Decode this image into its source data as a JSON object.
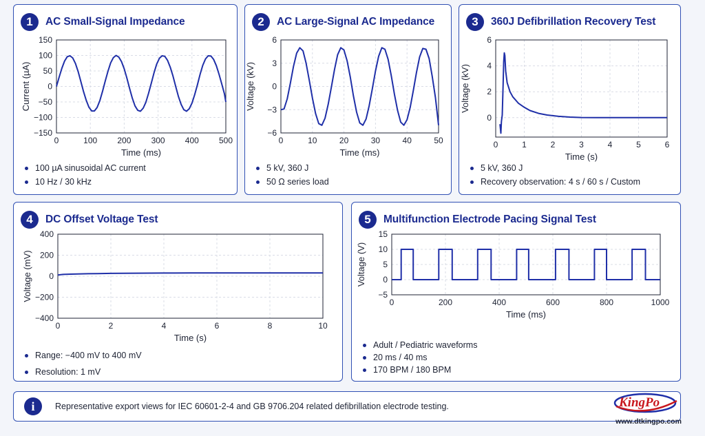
{
  "colors": {
    "accent": "#1b2a8f",
    "line": "#1f2fa8",
    "grid": "#d9dce6",
    "logo_red": "#c8161d"
  },
  "panels": [
    {
      "number": "1",
      "title": "AC Small-Signal Impedance",
      "bullets": [
        "100 µA sinusoidal AC current",
        "10 Hz / 30 kHz"
      ]
    },
    {
      "number": "2",
      "title": "AC Large-Signal AC Impedance",
      "bullets": [
        "5 kV, 360 J",
        "50 Ω series load"
      ]
    },
    {
      "number": "3",
      "title": "360J Defibrillation Recovery Test",
      "bullets": [
        "5 kV, 360 J",
        "Recovery observation: 4 s / 60 s / Custom"
      ]
    },
    {
      "number": "4",
      "title": "DC Offset Voltage Test",
      "bullets": [
        "Range: −400 mV to 400 mV",
        "Resolution: 1 mV"
      ]
    },
    {
      "number": "5",
      "title": "Multifunction Electrode Pacing Signal Test",
      "bullets": [
        "Adult / Pediatric waveforms",
        "20 ms / 40 ms",
        "170 BPM / 180 BPM"
      ]
    }
  ],
  "chart_data": [
    {
      "type": "line",
      "xlabel": "Time (ms)",
      "ylabel": "Current (µA)",
      "xlim": [
        0,
        500
      ],
      "ylim": [
        -150,
        150
      ],
      "xticks": [
        0,
        100,
        200,
        300,
        400,
        500
      ],
      "yticks": [
        -150,
        -100,
        -50,
        0,
        50,
        100,
        150
      ],
      "grid": true,
      "x": [
        0,
        8,
        16,
        24,
        32,
        40,
        48,
        56,
        64,
        72,
        80,
        88,
        96,
        104,
        112,
        120,
        128,
        136,
        144,
        152,
        160,
        168,
        176,
        184,
        192,
        200,
        208,
        216,
        224,
        232,
        240,
        248,
        256,
        264,
        272,
        280,
        288,
        296,
        304,
        312,
        320,
        328,
        336,
        344,
        352,
        360,
        368,
        376,
        384,
        392,
        400,
        408,
        416,
        424,
        432,
        440,
        448,
        456,
        464,
        472,
        480,
        488,
        496,
        500
      ],
      "y": [
        0,
        30,
        59,
        82,
        96,
        99,
        92,
        74,
        48,
        16,
        -17,
        -45,
        -67,
        -79,
        -79,
        -68,
        -46,
        -16,
        17,
        49,
        76,
        93,
        100,
        95,
        80,
        57,
        27,
        -7,
        -38,
        -63,
        -77,
        -80,
        -70,
        -51,
        -22,
        11,
        44,
        72,
        91,
        99,
        97,
        84,
        62,
        34,
        0,
        -32,
        -58,
        -75,
        -80,
        -72,
        -54,
        -27,
        5,
        39,
        68,
        89,
        99,
        98,
        87,
        67,
        39,
        8,
        -24,
        -50
      ]
    },
    {
      "type": "line",
      "xlabel": "Time (ms)",
      "ylabel": "Voltage (kV)",
      "xlim": [
        0,
        50
      ],
      "ylim": [
        -6,
        6
      ],
      "xticks": [
        0,
        10,
        20,
        30,
        40,
        50
      ],
      "yticks": [
        -6,
        -3,
        0,
        3,
        6
      ],
      "grid": true,
      "x": [
        0,
        1,
        2,
        3,
        4,
        5,
        6,
        7,
        8,
        9,
        10,
        11,
        12,
        13,
        14,
        15,
        16,
        17,
        18,
        19,
        20,
        21,
        22,
        23,
        24,
        25,
        26,
        27,
        28,
        29,
        30,
        31,
        32,
        33,
        34,
        35,
        36,
        37,
        38,
        39,
        40,
        41,
        42,
        43,
        44,
        45,
        46,
        47,
        48,
        49,
        50
      ],
      "y": [
        -3,
        -2.9,
        -1.6,
        0.4,
        2.6,
        4.3,
        5,
        4.6,
        3,
        0.8,
        -1.5,
        -3.5,
        -4.8,
        -5,
        -4.1,
        -2.3,
        -0.1,
        2.2,
        4.1,
        5,
        4.7,
        3.3,
        1.2,
        -1.2,
        -3.3,
        -4.7,
        -5,
        -4.2,
        -2.5,
        -0.3,
        2,
        3.9,
        5,
        4.8,
        3.5,
        1.4,
        -1,
        -3.1,
        -4.6,
        -5,
        -4.3,
        -2.7,
        -0.5,
        1.8,
        3.8,
        4.9,
        4.8,
        3.6,
        1.3,
        -1.4,
        -5
      ]
    },
    {
      "type": "line",
      "xlabel": "Time (s)",
      "ylabel": "Voltage (kV)",
      "xlim": [
        0,
        6
      ],
      "ylim": [
        -1.5,
        6
      ],
      "xticks": [
        0,
        1,
        2,
        3,
        4,
        5,
        6
      ],
      "yticks": [
        0,
        2,
        4,
        6
      ],
      "grid": true,
      "x": [
        0.15,
        0.18,
        0.2,
        0.23,
        0.26,
        0.28,
        0.3,
        0.32,
        0.35,
        0.4,
        0.5,
        0.6,
        0.8,
        1,
        1.2,
        1.5,
        1.8,
        2.2,
        2.6,
        3,
        3.5,
        4,
        5,
        6
      ],
      "y": [
        -0.5,
        -1.2,
        -0.3,
        0.2,
        2.6,
        4.3,
        5,
        4.8,
        3.6,
        2.7,
        2,
        1.6,
        1.1,
        0.8,
        0.55,
        0.33,
        0.2,
        0.1,
        0.04,
        0.01,
        0,
        0,
        0,
        0
      ]
    },
    {
      "type": "line",
      "xlabel": "Time (s)",
      "ylabel": "Voltage (mV)",
      "xlim": [
        0,
        10
      ],
      "ylim": [
        -400,
        400
      ],
      "xticks": [
        0,
        2,
        4,
        6,
        8,
        10
      ],
      "yticks": [
        -400,
        -200,
        0,
        200,
        400
      ],
      "grid": true,
      "x": [
        0,
        0.2,
        0.5,
        1,
        1.5,
        2,
        3,
        4,
        5,
        6,
        7,
        8,
        9,
        10
      ],
      "y": [
        12,
        17,
        20,
        23,
        25,
        27,
        29,
        30,
        31,
        31,
        31,
        31,
        31,
        31
      ]
    },
    {
      "type": "line",
      "xlabel": "Time (ms)",
      "ylabel": "Voltage (V)",
      "xlim": [
        0,
        1000
      ],
      "ylim": [
        -5,
        15
      ],
      "xticks": [
        0,
        200,
        400,
        600,
        800,
        1000
      ],
      "yticks": [
        -5,
        0,
        5,
        10,
        15
      ],
      "grid": true,
      "x": [
        0,
        35,
        35,
        80,
        80,
        175,
        175,
        225,
        225,
        320,
        320,
        370,
        370,
        465,
        465,
        510,
        510,
        610,
        610,
        660,
        660,
        755,
        755,
        800,
        800,
        895,
        895,
        945,
        945,
        1000
      ],
      "y": [
        0,
        0,
        10,
        10,
        0,
        0,
        10,
        10,
        0,
        0,
        10,
        10,
        0,
        0,
        10,
        10,
        0,
        0,
        10,
        10,
        0,
        0,
        10,
        10,
        0,
        0,
        10,
        10,
        0,
        0
      ]
    }
  ],
  "footer": {
    "info_icon": "info-icon",
    "text": "Representative export views for IEC 60601-2-4 and GB 9706.204 related defibrillation electrode testing."
  },
  "logo": {
    "wordmark": "KingPo",
    "url": "www.dtkingpo.com"
  }
}
